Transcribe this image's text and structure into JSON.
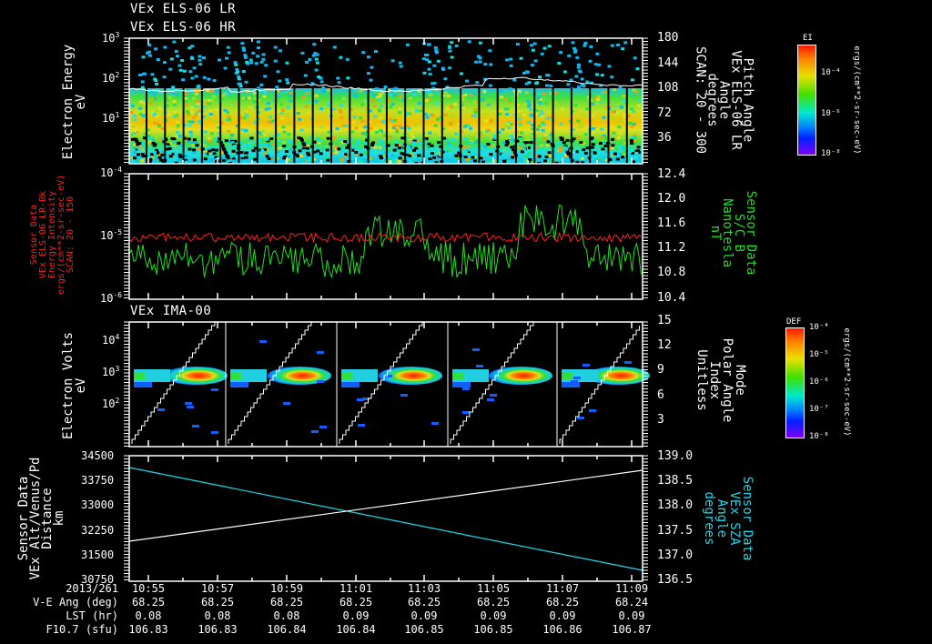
{
  "chart_data": [
    {
      "type": "heatmap",
      "title": [
        "VEx ELS-06 LR",
        "VEx ELS-06 HR"
      ],
      "ylabel": "Electron Energy\neV",
      "yscale": "log",
      "ylim": [
        1,
        1000
      ],
      "yticks": [
        "10^1",
        "10^2",
        "10^3"
      ],
      "right_ylabel": "Pitch Angle\nVEx ELS-06 LR\nAngle\ndegrees\nSCAN: 20 - 300",
      "right_yticks": [
        36,
        72,
        108,
        144,
        180
      ],
      "right_ylim": [
        0,
        180
      ],
      "colorbar": {
        "label": "EI",
        "units": "ergs/(cm**2-sr-sec-eV)",
        "ticks": [
          "10^-4",
          "10^-6",
          "10^-8"
        ]
      },
      "overlay": "pitch angle line (white), ~100-115 deg"
    },
    {
      "type": "line",
      "ylabel": "Sensor Data\nVEx ELS-06 LR-Bk\nEnergy Intensity\nergs/(cm**2-sr-sec-eV)\nSCAN: 20 - 150",
      "yscale": "log",
      "ylim": [
        1e-06,
        0.0001
      ],
      "yticks": [
        "10^-6",
        "10^-5",
        "10^-4"
      ],
      "right_ylabel": "Sensor Data\nS/C B\nNanotesla\nnT",
      "right_yticks": [
        10.4,
        10.8,
        11.2,
        11.6,
        12.0,
        12.4
      ],
      "right_ylim": [
        10.4,
        12.4
      ],
      "series": [
        {
          "name": "ELS-06 LR-Bk Energy Intensity",
          "color": "#ff2020",
          "axis": "left",
          "approx_level": "1e-5"
        },
        {
          "name": "S/C B (nT)",
          "color": "#20e020",
          "axis": "right",
          "approx_range": [
            10.7,
            12.0
          ]
        }
      ]
    },
    {
      "type": "heatmap",
      "title": "VEx IMA-00",
      "ylabel": "Electron Volts\neV",
      "yscale": "log",
      "ylim": [
        10,
        40000
      ],
      "yticks": [
        "10^2",
        "10^3",
        "10^4"
      ],
      "right_ylabel": "Mode\nPolar Angle\nIndex\nUnitless",
      "right_yticks": [
        3,
        6,
        9,
        12,
        15
      ],
      "right_ylim": [
        0,
        15
      ],
      "colorbar": {
        "label": "DEF",
        "units": "ergs/(cm**2-sr-sec-eV)",
        "ticks": [
          "10^-4",
          "10^-5",
          "10^-6",
          "10^-7",
          "10^-8"
        ]
      },
      "overlay": "polar angle index staircase (white), 5 sweeps"
    },
    {
      "type": "line",
      "ylabel": "Sensor Data\nVEx Alt/Venus/Pd\nDistance\nkm",
      "ylim": [
        30750,
        34500
      ],
      "yticks": [
        30750,
        31500,
        32250,
        33000,
        33750,
        34500
      ],
      "right_ylabel": "Sensor Data\nVEx SZA\nAngle\ndegrees",
      "right_yticks": [
        136.5,
        137.0,
        137.5,
        138.0,
        138.5,
        139.0
      ],
      "right_ylim": [
        136.5,
        139.0
      ],
      "series": [
        {
          "name": "Altitude (km)",
          "color": "#ffffff",
          "axis": "left",
          "x": [
            "10:55",
            "11:10"
          ],
          "values": [
            31850,
            33950
          ]
        },
        {
          "name": "SZA (deg)",
          "color": "#20d8e8",
          "axis": "right",
          "x": [
            "10:55",
            "11:10"
          ],
          "values": [
            138.85,
            136.7
          ]
        }
      ]
    }
  ],
  "panel1": {
    "title1": "VEx ELS-06 LR",
    "title2": "VEx ELS-06 HR",
    "ylabel": "Electron Energy",
    "yunit": "eV",
    "yticks": [
      {
        "b": "10",
        "e": "3"
      },
      {
        "b": "10",
        "e": "2"
      },
      {
        "b": "10",
        "e": "1"
      }
    ],
    "rticks": [
      "180",
      "144",
      "108",
      "72",
      "36"
    ],
    "rlabel": [
      "Pitch Angle",
      "VEx ELS-06 LR",
      "Angle",
      "degrees",
      "SCAN: 20 - 300"
    ],
    "cb_title": "EI",
    "cb_ticks": [
      "10⁻⁴",
      "10⁻⁶",
      "10⁻⁸"
    ],
    "cb_units": "ergs/(cm**2-sr-sec-eV)"
  },
  "panel2": {
    "yticks": [
      {
        "b": "10",
        "e": "-4"
      },
      {
        "b": "10",
        "e": "-5"
      },
      {
        "b": "10",
        "e": "-6"
      }
    ],
    "llabel": [
      "Sensor Data",
      "VEx ELS-06 LR-Bk",
      "Energy Intensity",
      "ergs/(cm**2-sr-sec-eV)",
      "SCAN: 20 - 150"
    ],
    "rticks": [
      "12.4",
      "12.0",
      "11.6",
      "11.2",
      "10.8",
      "10.4"
    ],
    "rlabel": [
      "Sensor Data",
      "S/C B",
      "Nanotesla",
      "nT"
    ]
  },
  "panel3": {
    "title": "VEx IMA-00",
    "ylabel": "Electron Volts",
    "yunit": "eV",
    "yticks": [
      {
        "b": "10",
        "e": "4"
      },
      {
        "b": "10",
        "e": "3"
      },
      {
        "b": "10",
        "e": "2"
      }
    ],
    "rticks": [
      "15",
      "12",
      "9",
      "6",
      "3"
    ],
    "rlabel": [
      "Mode",
      "Polar Angle",
      "Index",
      "Unitless"
    ],
    "cb_title": "DEF",
    "cb_ticks": [
      "10⁻⁴",
      "10⁻⁵",
      "10⁻⁶",
      "10⁻⁷",
      "10⁻⁸"
    ],
    "cb_units": "ergs/(cm**2-sr-sec-eV)"
  },
  "panel4": {
    "yticks": [
      "34500",
      "33750",
      "33000",
      "32250",
      "31500",
      "30750"
    ],
    "llabel": [
      "Sensor Data",
      "VEx Alt/Venus/Pd",
      "Distance",
      "km"
    ],
    "rticks": [
      "139.0",
      "138.5",
      "138.0",
      "137.5",
      "137.0",
      "136.5"
    ],
    "rlabel": [
      "Sensor Data",
      "VEx SZA",
      "Angle",
      "degrees"
    ]
  },
  "xaxis": {
    "row_labels": [
      "2013/261",
      "V-E Ang (deg)",
      "LST (hr)",
      "F10.7 (sfu)"
    ],
    "columns": [
      {
        "time": "10:55",
        "ve": "68.25",
        "lst": "0.08",
        "f107": "106.83"
      },
      {
        "time": "10:57",
        "ve": "68.25",
        "lst": "0.08",
        "f107": "106.83"
      },
      {
        "time": "10:59",
        "ve": "68.25",
        "lst": "0.08",
        "f107": "106.84"
      },
      {
        "time": "11:01",
        "ve": "68.25",
        "lst": "0.09",
        "f107": "106.84"
      },
      {
        "time": "11:03",
        "ve": "68.25",
        "lst": "0.09",
        "f107": "106.85"
      },
      {
        "time": "11:05",
        "ve": "68.25",
        "lst": "0.09",
        "f107": "106.85"
      },
      {
        "time": "11:07",
        "ve": "68.25",
        "lst": "0.09",
        "f107": "106.86"
      },
      {
        "time": "11:09",
        "ve": "68.24",
        "lst": "0.09",
        "f107": "106.87"
      }
    ]
  },
  "colors": {
    "bg": "#000000",
    "axis": "#ffffff",
    "red_series": "#ff2020",
    "green_series": "#20e020",
    "cyan_series": "#20d8e8"
  }
}
